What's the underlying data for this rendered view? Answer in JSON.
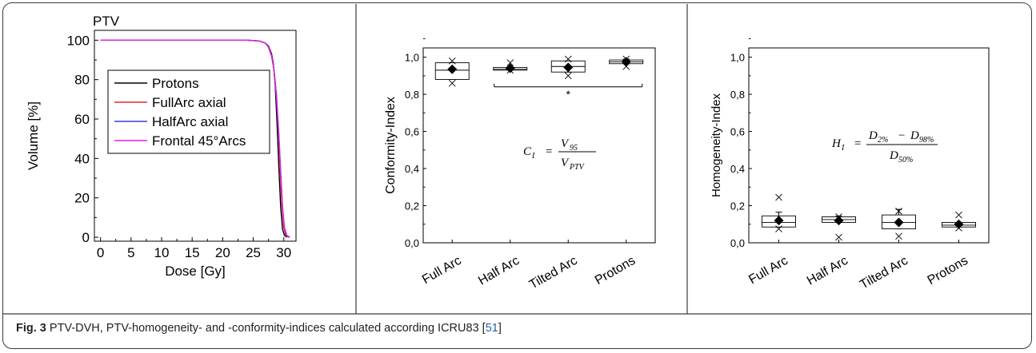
{
  "caption": {
    "label": "Fig. 3",
    "text": " PTV-DVH, PTV-homogeneity- and -conformity-indices calculated according ICRU83 [",
    "ref": "51",
    "close": "]"
  },
  "chart_data": [
    {
      "type": "line",
      "title": "PTV",
      "xlabel": "Dose [Gy]",
      "ylabel": "Volume [%]",
      "xlim": [
        -1,
        32
      ],
      "ylim": [
        -2,
        105
      ],
      "xticks": [
        "0",
        "5",
        "10",
        "15",
        "20",
        "25",
        "30"
      ],
      "yticks": [
        "0",
        "20",
        "40",
        "60",
        "80",
        "100"
      ],
      "legend_position": "upper-left",
      "series": [
        {
          "name": "Protons",
          "color": "#000000",
          "x": [
            0,
            24,
            26,
            27,
            27.5,
            28,
            28.3,
            28.6,
            28.9,
            29.2,
            29.5,
            29.8,
            30.1,
            30.5
          ],
          "y": [
            100,
            100,
            99.6,
            98.5,
            97,
            93,
            88,
            77,
            58,
            35,
            15,
            4,
            1,
            0
          ]
        },
        {
          "name": "FullArc axial",
          "color": "#e8262b",
          "x": [
            0,
            24,
            26,
            27,
            27.5,
            28,
            28.4,
            28.8,
            29.1,
            29.4,
            29.7,
            30.0,
            30.3,
            30.8
          ],
          "y": [
            100,
            100,
            99.6,
            98.5,
            96.5,
            92,
            85,
            72,
            55,
            35,
            16,
            5,
            1,
            0
          ]
        },
        {
          "name": "HalfArc axial",
          "color": "#3a3adf",
          "x": [
            0,
            24,
            26,
            27,
            27.5,
            28,
            28.4,
            28.8,
            29.2,
            29.5,
            29.8,
            30.1,
            30.4,
            30.9
          ],
          "y": [
            100,
            100,
            99.6,
            98.5,
            96.5,
            92,
            85,
            72,
            52,
            33,
            15,
            5,
            1,
            0
          ]
        },
        {
          "name": "Frontal 45°Arcs",
          "color": "#e020e0",
          "x": [
            0,
            24,
            26,
            27,
            27.5,
            28,
            28.4,
            28.8,
            29.2,
            29.5,
            29.8,
            30.1,
            30.5,
            31.0
          ],
          "y": [
            100,
            100,
            99.6,
            98.5,
            96.5,
            92,
            85,
            71,
            51,
            32,
            15,
            5,
            1,
            0
          ]
        }
      ]
    },
    {
      "type": "box",
      "title": "",
      "xlabel": "",
      "ylabel": "Conformity-Index",
      "ylim": [
        0,
        1.05
      ],
      "yticks": [
        "0,0",
        "0,2",
        "0,4",
        "0,6",
        "0,8",
        "1,0"
      ],
      "categories": [
        "Full Arc",
        "Half Arc",
        "Tilted Arc",
        "Protons"
      ],
      "boxes": [
        {
          "q1": 0.88,
          "median": 0.93,
          "q3": 0.97,
          "whisker_low": 0.88,
          "whisker_high": 0.97,
          "mean": 0.935,
          "outliers": [
            0.86,
            0.98
          ]
        },
        {
          "q1": 0.93,
          "median": 0.935,
          "q3": 0.945,
          "whisker_low": 0.93,
          "whisker_high": 0.945,
          "mean": 0.94,
          "outliers": [
            0.93,
            0.97
          ]
        },
        {
          "q1": 0.92,
          "median": 0.95,
          "q3": 0.98,
          "whisker_low": 0.92,
          "whisker_high": 0.98,
          "mean": 0.945,
          "outliers": [
            0.9,
            0.99
          ]
        },
        {
          "q1": 0.965,
          "median": 0.975,
          "q3": 0.985,
          "whisker_low": 0.965,
          "whisker_high": 0.99,
          "mean": 0.975,
          "outliers": [
            0.95,
            0.99
          ]
        }
      ],
      "significance": {
        "label": "*",
        "from_category": "Half Arc",
        "to_category": "Protons",
        "y": 0.84
      },
      "formula": {
        "lhs": "C",
        "lhs_sub": "I",
        "num": "V",
        "num_sub": "95",
        "den": "V",
        "den_sub": "PTV"
      }
    },
    {
      "type": "box",
      "title": "",
      "xlabel": "",
      "ylabel": "Homogeneity-Index",
      "ylim": [
        0,
        1.05
      ],
      "yticks": [
        "0,0",
        "0,2",
        "0,4",
        "0,6",
        "0,8",
        "1,0"
      ],
      "categories": [
        "Full Arc",
        "Half Arc",
        "Tilted Arc",
        "Protons"
      ],
      "boxes": [
        {
          "q1": 0.085,
          "median": 0.11,
          "q3": 0.145,
          "whisker_low": 0.085,
          "whisker_high": 0.165,
          "mean": 0.12,
          "outliers": [
            0.075,
            0.245
          ]
        },
        {
          "q1": 0.11,
          "median": 0.125,
          "q3": 0.14,
          "whisker_low": 0.11,
          "whisker_high": 0.145,
          "mean": 0.12,
          "outliers": [
            0.03,
            0.14
          ]
        },
        {
          "q1": 0.075,
          "median": 0.11,
          "q3": 0.15,
          "whisker_low": 0.075,
          "whisker_high": 0.18,
          "mean": 0.11,
          "outliers": [
            0.035,
            0.17
          ]
        },
        {
          "q1": 0.085,
          "median": 0.095,
          "q3": 0.11,
          "whisker_low": 0.085,
          "whisker_high": 0.11,
          "mean": 0.1,
          "outliers": [
            0.08,
            0.15
          ]
        }
      ],
      "formula": {
        "lhs": "H",
        "lhs_sub": "I",
        "num_a": "D",
        "num_a_sub": "2%",
        "num_b": "D",
        "num_b_sub": "98%",
        "den": "D",
        "den_sub": "50%"
      }
    }
  ]
}
